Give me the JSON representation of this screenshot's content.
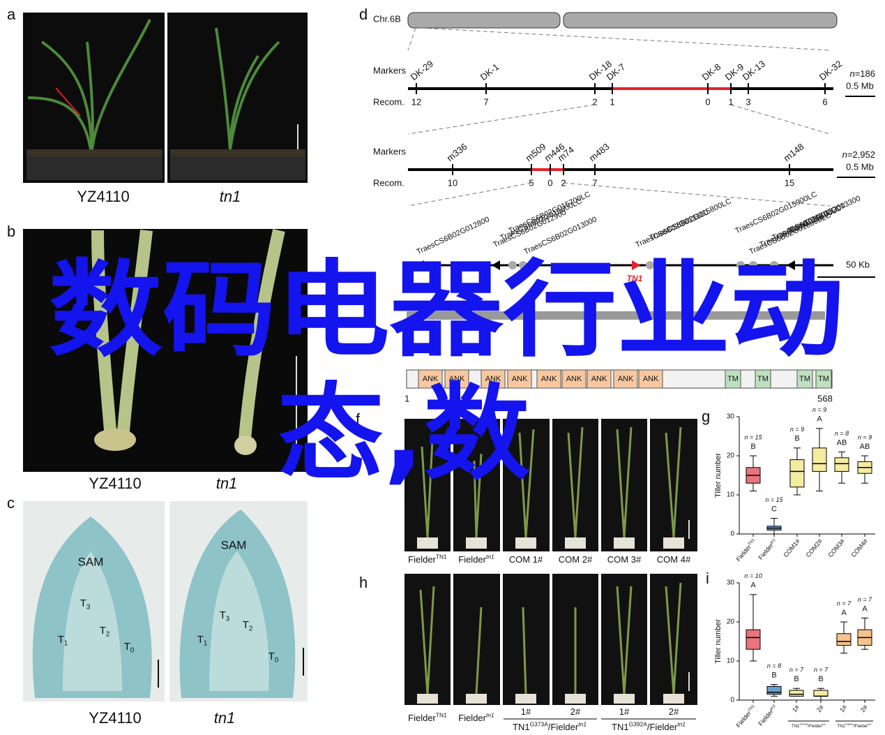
{
  "panels": {
    "a": {
      "label": "a",
      "captions": [
        {
          "text": "YZ4110"
        },
        {
          "text": "tn1",
          "italic": true
        }
      ]
    },
    "b": {
      "label": "b",
      "captions": [
        {
          "text": "YZ4110"
        },
        {
          "text": "tn1",
          "italic": true
        }
      ]
    },
    "c": {
      "label": "c",
      "captions": [
        {
          "text": "YZ4110"
        },
        {
          "text": "tn1",
          "italic": true
        }
      ],
      "annotations": [
        "SAM",
        "SAM"
      ],
      "tillers": [
        {
          "text": "T",
          "sub": "1"
        },
        {
          "text": "T",
          "sub": "3"
        },
        {
          "text": "T",
          "sub": "2"
        },
        {
          "text": "T",
          "sub": "0"
        }
      ]
    },
    "d": {
      "label": "d",
      "chromosome": "Chr.6B",
      "map1": {
        "markers_label": "Markers",
        "recom_label": "Recom.",
        "markers": [
          "DK-29",
          "DK-1",
          "DK-18",
          "DK-7",
          "DK-8",
          "DK-9",
          "DK-13",
          "DK-32"
        ],
        "recom": [
          12,
          7,
          2,
          1,
          0,
          1,
          3,
          6
        ],
        "n_symbol": "n",
        "n_value": "=186",
        "scale": "0.5 Mb"
      },
      "map2": {
        "markers_label": "Markers",
        "recom_label": "Recom.",
        "markers": [
          "m336",
          "m509",
          "m446",
          "m74",
          "m483",
          "m148"
        ],
        "recom": [
          10,
          5,
          0,
          2,
          7,
          15
        ],
        "n_symbol": "n",
        "n_value": "=2,952",
        "scale": "0.5 Mb"
      },
      "genes": [
        "TraesCS6B02G012800",
        "TraesCS6B02G012900",
        "TraesCS6B02G015600LC",
        "TraesCS6B02G015700LC",
        "TraesCS6B02G013000",
        "TraesCS6B02G013100",
        "TraesCS6B02G015800LC",
        "TraesCS6B02G015900LC",
        "TraesCS6B02G016000LC",
        "TraesCS6B02G016100LC",
        "TraesCS6B02G013200",
        "TraesCS6B02G013300"
      ],
      "target_gene": "TN1",
      "gene_scale": "50 Kb"
    },
    "e": {
      "domains": [
        "ANK",
        "ANK",
        "ANK",
        "ANK",
        "ANK",
        "ANK",
        "ANK",
        "ANK",
        "ANK",
        "TM",
        "TM",
        "TM",
        "TM"
      ],
      "start": 1,
      "end": 568
    },
    "f": {
      "label": "f",
      "captions": [
        {
          "text": "Fielder",
          "sup": "TN1"
        },
        {
          "text": "Fielder",
          "sup": "tn1"
        },
        {
          "text": "COM 1#"
        },
        {
          "text": "COM 2#"
        },
        {
          "text": "COM 3#"
        },
        {
          "text": "COM 4#"
        }
      ]
    },
    "h": {
      "label": "h",
      "captions": [
        {
          "text": "Fielder",
          "sup": "TN1"
        },
        {
          "text": "Fielder",
          "sup": "tn1"
        },
        {
          "text": "1#"
        },
        {
          "text": "2#"
        },
        {
          "text": "1#"
        },
        {
          "text": "2#"
        }
      ],
      "groups": [
        {
          "text": "TN1",
          "sup": "G373A",
          "text2": "/Fielder",
          "sup2": "tn1"
        },
        {
          "text": "TN1",
          "sup": "G392A",
          "text2": "/Fielder",
          "sup2": "tn1"
        }
      ]
    }
  },
  "chart_data": [
    {
      "type": "box",
      "panel": "g",
      "y_label": "Tiller number",
      "ylim": [
        0,
        30
      ],
      "yticks": [
        0,
        10,
        20,
        30
      ],
      "categories": [
        {
          "text": "Fielder",
          "sup": "TN1"
        },
        {
          "text": "Fielder",
          "sup": "tn1"
        },
        {
          "text": "COM1#"
        },
        {
          "text": "COM2#"
        },
        {
          "text": "COM3#"
        },
        {
          "text": "COM4#"
        }
      ],
      "n_labels": [
        "n = 15",
        "n = 15",
        "n = 9",
        "n = 9",
        "n = 8",
        "n = 9"
      ],
      "letters": [
        "B",
        "C",
        "B",
        "A",
        "AB",
        "AB"
      ],
      "colors": [
        "#e8747c",
        "#6a9fd4",
        "#f4eca0",
        "#f4eca0",
        "#f4eca0",
        "#f4eca0"
      ],
      "boxes": [
        {
          "min": 11,
          "q1": 13,
          "median": 15,
          "q3": 17,
          "max": 20
        },
        {
          "min": 0,
          "q1": 1,
          "median": 1.5,
          "q3": 2,
          "max": 4
        },
        {
          "min": 10,
          "q1": 12,
          "median": 16,
          "q3": 19,
          "max": 22
        },
        {
          "min": 11,
          "q1": 16,
          "median": 18,
          "q3": 22,
          "max": 27
        },
        {
          "min": 13,
          "q1": 16,
          "median": 18,
          "q3": 19.5,
          "max": 21
        },
        {
          "min": 13,
          "q1": 15.5,
          "median": 17,
          "q3": 18.5,
          "max": 20
        }
      ]
    },
    {
      "type": "box",
      "panel": "i",
      "y_label": "Tiller number",
      "ylim": [
        0,
        30
      ],
      "yticks": [
        0,
        10,
        20,
        30
      ],
      "categories": [
        {
          "text": "Fielder",
          "sup": "TN1"
        },
        {
          "text": "Fielder",
          "sup": "tn1"
        },
        {
          "text": "1#"
        },
        {
          "text": "2#"
        },
        {
          "text": "1#"
        },
        {
          "text": "2#"
        }
      ],
      "groups": [
        {
          "text": "TN1",
          "sup": "G373A",
          "text2": "/Fielder",
          "sup2": "tn1"
        },
        {
          "text": "TN1",
          "sup": "G392A",
          "text2": "/Fielder",
          "sup2": "tn1"
        }
      ],
      "n_labels": [
        "n = 10",
        "n = 8",
        "n = 7",
        "n = 7",
        "n = 7",
        "n = 7"
      ],
      "letters": [
        "A",
        "B",
        "B",
        "B",
        "A",
        "A"
      ],
      "colors": [
        "#e8747c",
        "#6a9fd4",
        "#f4eca0",
        "#f4eca0",
        "#f6c28c",
        "#f6c28c"
      ],
      "boxes": [
        {
          "min": 10,
          "q1": 13,
          "median": 16,
          "q3": 18,
          "max": 27
        },
        {
          "min": 1,
          "q1": 1.5,
          "median": 2,
          "q3": 3.5,
          "max": 4
        },
        {
          "min": 1,
          "q1": 1,
          "median": 1.5,
          "q3": 2.5,
          "max": 3
        },
        {
          "min": 0,
          "q1": 1,
          "median": 1,
          "q3": 2.5,
          "max": 3
        },
        {
          "min": 12,
          "q1": 14,
          "median": 15,
          "q3": 17,
          "max": 20
        },
        {
          "min": 13,
          "q1": 14,
          "median": 16,
          "q3": 18,
          "max": 21
        }
      ]
    }
  ],
  "watermark": [
    "数码电器行业动",
    "态,数"
  ]
}
